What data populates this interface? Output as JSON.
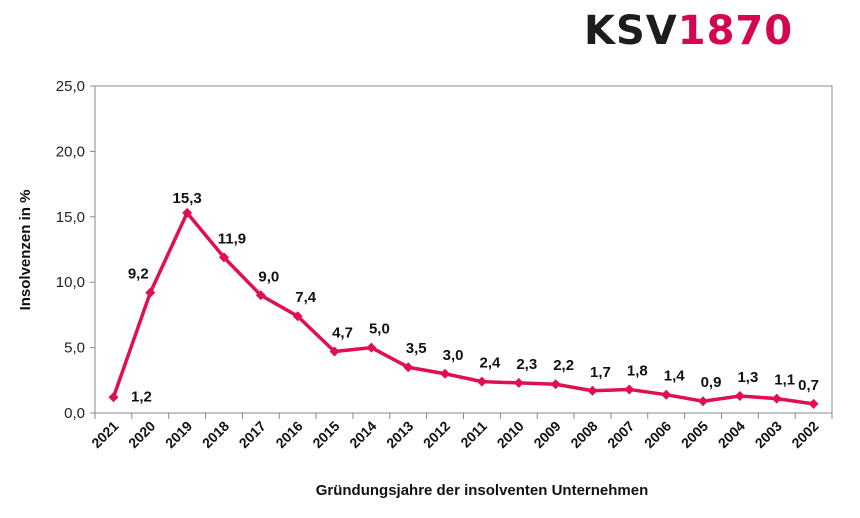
{
  "logo": {
    "part1": "KSV",
    "part2": "1870",
    "brand_color": "#d4064f"
  },
  "chart_data": {
    "type": "line",
    "title": "",
    "xlabel": "Gründungsjahre der insolventen Unternehmen",
    "ylabel": "Insolvenzen in %",
    "ylim": [
      0,
      25
    ],
    "yticks": [
      "0,0",
      "5,0",
      "10,0",
      "15,0",
      "20,0",
      "25,0"
    ],
    "grid": false,
    "line_color": "#e0104f",
    "categories": [
      "2021",
      "2020",
      "2019",
      "2018",
      "2017",
      "2016",
      "2015",
      "2014",
      "2013",
      "2012",
      "2011",
      "2010",
      "2009",
      "2008",
      "2007",
      "2006",
      "2005",
      "2004",
      "2003",
      "2002"
    ],
    "values": [
      1.2,
      9.2,
      15.3,
      11.9,
      9.0,
      7.4,
      4.7,
      5.0,
      3.5,
      3.0,
      2.4,
      2.3,
      2.2,
      1.7,
      1.8,
      1.4,
      0.9,
      1.3,
      1.1,
      0.7
    ],
    "data_labels": [
      "1,2",
      "9,2",
      "15,3",
      "11,9",
      "9,0",
      "7,4",
      "4,7",
      "5,0",
      "3,5",
      "3,0",
      "2,4",
      "2,3",
      "2,2",
      "1,7",
      "1,8",
      "1,4",
      "0,9",
      "1,3",
      "1,1",
      "0,7"
    ]
  }
}
